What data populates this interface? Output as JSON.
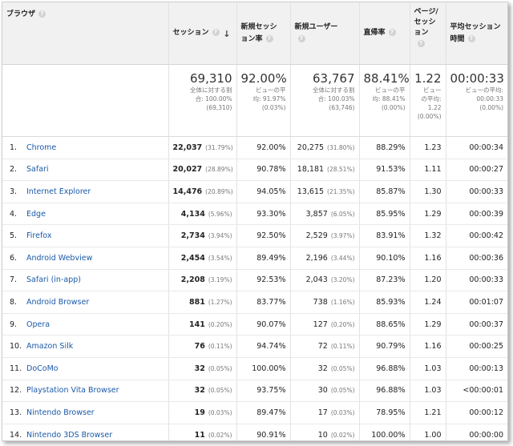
{
  "header": {
    "browser": "ブラウザ",
    "sessions": "セッション",
    "new_session_rate": [
      "新規セッシ",
      "ョン率"
    ],
    "new_users": "新規ユーザー",
    "bounce_rate": "直帰率",
    "pages_per_session": [
      "ページ/",
      "セッシ",
      "ョン"
    ],
    "avg_duration": [
      "平均セッション",
      "時間"
    ],
    "help_glyph": "?",
    "sort_glyph": "↓"
  },
  "totals": {
    "sessions": "69,310",
    "sessions_sub": [
      "全体に対する割",
      "合: 100.00%",
      "(69,310)"
    ],
    "new_rate": "92.00%",
    "new_rate_sub": [
      "ビューの平",
      "均: 91.97%",
      "(0.03%)"
    ],
    "new_users": "63,767",
    "new_users_sub": [
      "全体に対する割",
      "合: 100.03%",
      "(63,746)"
    ],
    "bounce": "88.41%",
    "bounce_sub": [
      "ビューの平",
      "均: 88.41%",
      "(0.00%)"
    ],
    "pps": "1.22",
    "pps_sub": [
      "ビュー",
      "の平均:",
      "1.22",
      "(0.00%)"
    ],
    "avg": "00:00:33",
    "avg_sub": [
      "ビューの平均:",
      "00:00:33",
      "(0.00%)"
    ]
  },
  "rows": [
    {
      "n": "1.",
      "name": "Chrome",
      "sessions": "22,037",
      "s_pct": "(31.79%)",
      "new_rate": "92.00%",
      "new_users": "20,275",
      "u_pct": "(31.80%)",
      "bounce": "88.29%",
      "pps": "1.23",
      "avg": "00:00:34"
    },
    {
      "n": "2.",
      "name": "Safari",
      "sessions": "20,027",
      "s_pct": "(28.89%)",
      "new_rate": "90.78%",
      "new_users": "18,181",
      "u_pct": "(28.51%)",
      "bounce": "91.53%",
      "pps": "1.11",
      "avg": "00:00:27"
    },
    {
      "n": "3.",
      "name": "Internet Explorer",
      "sessions": "14,476",
      "s_pct": "(20.89%)",
      "new_rate": "94.05%",
      "new_users": "13,615",
      "u_pct": "(21.35%)",
      "bounce": "85.87%",
      "pps": "1.30",
      "avg": "00:00:33"
    },
    {
      "n": "4.",
      "name": "Edge",
      "sessions": "4,134",
      "s_pct": "(5.96%)",
      "new_rate": "93.30%",
      "new_users": "3,857",
      "u_pct": "(6.05%)",
      "bounce": "85.95%",
      "pps": "1.29",
      "avg": "00:00:39"
    },
    {
      "n": "5.",
      "name": "Firefox",
      "sessions": "2,734",
      "s_pct": "(3.94%)",
      "new_rate": "92.50%",
      "new_users": "2,529",
      "u_pct": "(3.97%)",
      "bounce": "83.91%",
      "pps": "1.32",
      "avg": "00:00:42"
    },
    {
      "n": "6.",
      "name": "Android Webview",
      "sessions": "2,454",
      "s_pct": "(3.54%)",
      "new_rate": "89.49%",
      "new_users": "2,196",
      "u_pct": "(3.44%)",
      "bounce": "90.10%",
      "pps": "1.16",
      "avg": "00:00:36"
    },
    {
      "n": "7.",
      "name": "Safari (in-app)",
      "sessions": "2,208",
      "s_pct": "(3.19%)",
      "new_rate": "92.53%",
      "new_users": "2,043",
      "u_pct": "(3.20%)",
      "bounce": "87.23%",
      "pps": "1.20",
      "avg": "00:00:33"
    },
    {
      "n": "8.",
      "name": "Android Browser",
      "sessions": "881",
      "s_pct": "(1.27%)",
      "new_rate": "83.77%",
      "new_users": "738",
      "u_pct": "(1.16%)",
      "bounce": "85.93%",
      "pps": "1.24",
      "avg": "00:01:07"
    },
    {
      "n": "9.",
      "name": "Opera",
      "sessions": "141",
      "s_pct": "(0.20%)",
      "new_rate": "90.07%",
      "new_users": "127",
      "u_pct": "(0.20%)",
      "bounce": "88.65%",
      "pps": "1.29",
      "avg": "00:00:37"
    },
    {
      "n": "10.",
      "name": "Amazon Silk",
      "sessions": "76",
      "s_pct": "(0.11%)",
      "new_rate": "94.74%",
      "new_users": "72",
      "u_pct": "(0.11%)",
      "bounce": "90.79%",
      "pps": "1.16",
      "avg": "00:00:25"
    },
    {
      "n": "11.",
      "name": "DoCoMo",
      "sessions": "32",
      "s_pct": "(0.05%)",
      "new_rate": "100.00%",
      "new_users": "32",
      "u_pct": "(0.05%)",
      "bounce": "96.88%",
      "pps": "1.03",
      "avg": "00:00:13"
    },
    {
      "n": "12.",
      "name": "Playstation Vita Browser",
      "sessions": "32",
      "s_pct": "(0.05%)",
      "new_rate": "93.75%",
      "new_users": "30",
      "u_pct": "(0.05%)",
      "bounce": "96.88%",
      "pps": "1.03",
      "avg": "<00:00:01"
    },
    {
      "n": "13.",
      "name": "Nintendo Browser",
      "sessions": "19",
      "s_pct": "(0.03%)",
      "new_rate": "89.47%",
      "new_users": "17",
      "u_pct": "(0.03%)",
      "bounce": "78.95%",
      "pps": "1.21",
      "avg": "00:00:12"
    },
    {
      "n": "14.",
      "name": "Nintendo 3DS Browser",
      "sessions": "11",
      "s_pct": "(0.02%)",
      "new_rate": "90.91%",
      "new_users": "10",
      "u_pct": "(0.02%)",
      "bounce": "100.00%",
      "pps": "1.00",
      "avg": "00:00:00"
    }
  ]
}
